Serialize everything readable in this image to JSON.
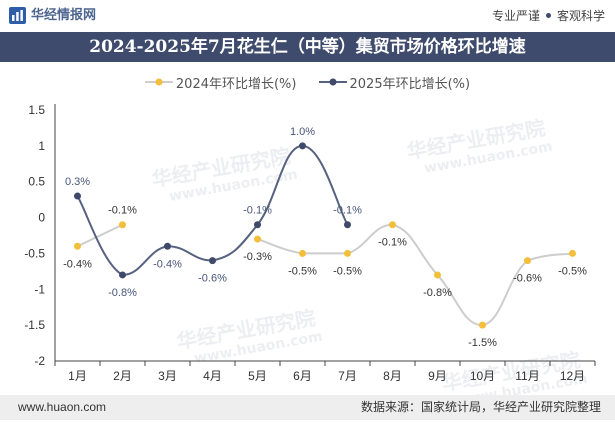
{
  "header": {
    "logo_text": "华经情报网",
    "slogan_left": "专业严谨",
    "slogan_right": "客观科学"
  },
  "colors": {
    "title_bar": "#3e4b6c",
    "logo_blue": "#2f5ea8"
  },
  "watermark": {
    "text": "华经产业研究院",
    "url": "www.huaon.com"
  },
  "chart_data": {
    "type": "line",
    "title": "2024-2025年7月花生仁（中等）集贸市场价格环比增速",
    "categories": [
      "1月",
      "2月",
      "3月",
      "4月",
      "5月",
      "6月",
      "7月",
      "8月",
      "9月",
      "10月",
      "11月",
      "12月"
    ],
    "series": [
      {
        "name": "2024年环比增长(%)",
        "values": [
          -0.4,
          -0.1,
          null,
          null,
          -0.3,
          -0.5,
          -0.5,
          -0.1,
          -0.8,
          -1.5,
          -0.6,
          -0.5
        ],
        "color": "#cdcdcd",
        "marker_color": "#f3be3a",
        "label_color": "#333333"
      },
      {
        "name": "2025年环比增长(%)",
        "values": [
          0.3,
          -0.8,
          -0.4,
          -0.6,
          -0.1,
          1.0,
          -0.1,
          null,
          null,
          null,
          null,
          null
        ],
        "color": "#56627f",
        "marker_color": "#3f4a6b",
        "label_color": "#47557a"
      }
    ],
    "data_label_suffix": "%",
    "ylim": [
      -2,
      1.5
    ],
    "yticks": [
      1.5,
      1,
      0.5,
      0,
      -0.5,
      -1,
      -1.5,
      -2
    ],
    "smooth": true,
    "grid": false,
    "legend": "top-center"
  },
  "footer": {
    "website": "www.huaon.com",
    "source": "数据来源：国家统计局，华经产业研究院整理"
  }
}
